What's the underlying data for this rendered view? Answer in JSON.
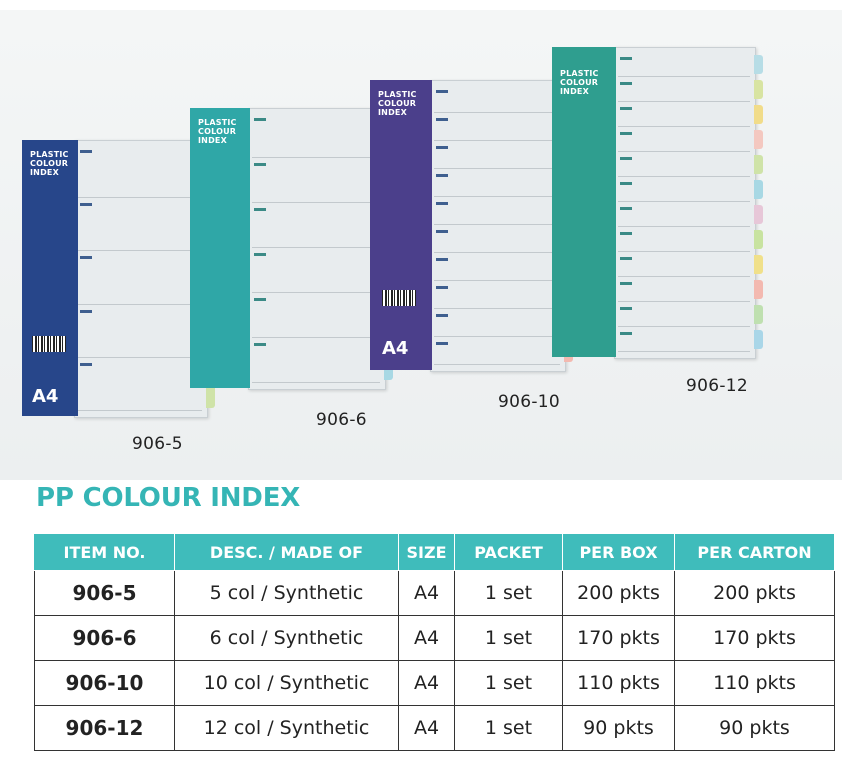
{
  "products": [
    {
      "code": "906-5",
      "cover_title": [
        "PLASTIC",
        "COLOUR",
        "INDEX"
      ],
      "size_label": "A4",
      "cover_color": "#27468a"
    },
    {
      "code": "906-6",
      "cover_title": [
        "PLASTIC",
        "COLOUR",
        "INDEX"
      ],
      "size_label": "",
      "cover_color": "#2fa7a7"
    },
    {
      "code": "906-10",
      "cover_title": [
        "PLASTIC",
        "COLOUR",
        "INDEX"
      ],
      "size_label": "A4",
      "cover_color": "#4b3f8b"
    },
    {
      "code": "906-12",
      "cover_title": [
        "PLASTIC",
        "COLOUR",
        "INDEX"
      ],
      "size_label": "",
      "cover_color": "#2f9e8f"
    }
  ],
  "heading": "PP COLOUR INDEX",
  "table": {
    "headers": [
      "ITEM NO.",
      "DESC. / MADE OF",
      "SIZE",
      "PACKET",
      "PER BOX",
      "PER CARTON"
    ],
    "rows": [
      [
        "906-5",
        "5 col / Synthetic",
        "A4",
        "1 set",
        "200 pkts",
        "200 pkts"
      ],
      [
        "906-6",
        "6 col / Synthetic",
        "A4",
        "1 set",
        "170 pkts",
        "170 pkts"
      ],
      [
        "906-10",
        "10 col / Synthetic",
        "A4",
        "1 set",
        "110 pkts",
        "110 pkts"
      ],
      [
        "906-12",
        "12 col / Synthetic",
        "A4",
        "1 set",
        "90 pkts",
        "90 pkts"
      ]
    ]
  },
  "colors": {
    "accent": "#3fbcbb",
    "heading": "#35b5b5",
    "tab_palette": [
      "#b7dde6",
      "#d8e4a2",
      "#f1dc8a",
      "#f4c8c0",
      "#cfe3a8",
      "#a8d8e4",
      "#e7c7d8",
      "#c8e3a0",
      "#f0e08a",
      "#f3b9b0",
      "#bfe0b0",
      "#a9d6e8"
    ]
  }
}
